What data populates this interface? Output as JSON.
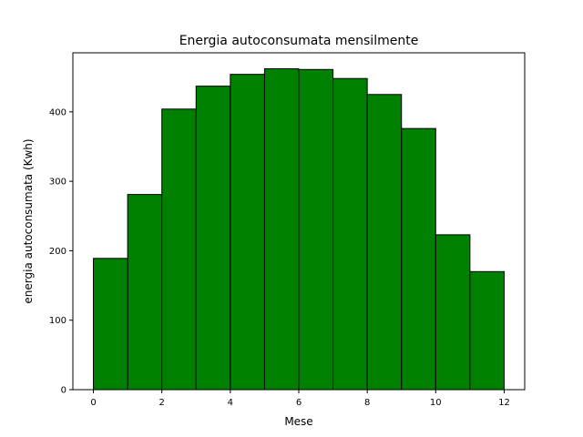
{
  "chart_data": {
    "type": "bar",
    "title": "Energia autoconsumata mensilmente",
    "xlabel": "Mese",
    "ylabel": "energia autoconsumata (Kwh)",
    "bar_color": "#008000",
    "edge_color": "#000000",
    "x": [
      0,
      1,
      2,
      3,
      4,
      5,
      6,
      7,
      8,
      9,
      10,
      11
    ],
    "bar_width": 1,
    "values": [
      189,
      281,
      404,
      437,
      454,
      462,
      461,
      448,
      425,
      376,
      223,
      170
    ],
    "xlim": [
      -0.6,
      12.6
    ],
    "ylim": [
      0,
      485
    ],
    "xticks": [
      0,
      2,
      4,
      6,
      8,
      10,
      12
    ],
    "yticks": [
      0,
      100,
      200,
      300,
      400
    ],
    "grid": false,
    "legend": "none"
  }
}
